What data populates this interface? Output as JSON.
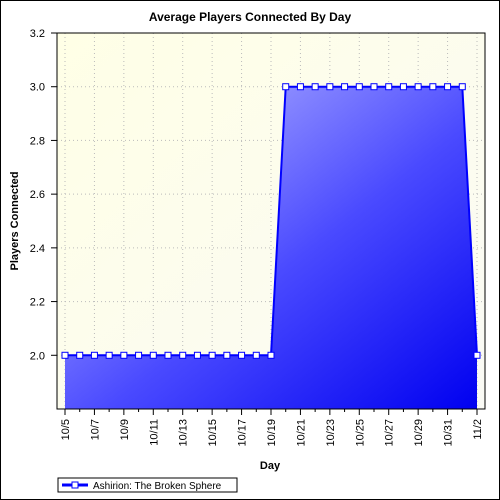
{
  "chart_data": {
    "type": "area",
    "title": "Average Players Connected By Day",
    "x_label": "Day",
    "y_label": "Players Connected",
    "categories": [
      "10/5",
      null,
      "10/7",
      null,
      "10/9",
      null,
      "10/11",
      null,
      "10/13",
      null,
      "10/15",
      null,
      "10/17",
      null,
      "10/19",
      null,
      "10/21",
      null,
      "10/23",
      null,
      "10/25",
      null,
      "10/27",
      null,
      "10/29",
      null,
      "10/31",
      null,
      "11/2"
    ],
    "series": [
      {
        "name": "Ashirion: The Broken Sphere",
        "color": "#0000ff",
        "values": [
          2,
          2,
          2,
          2,
          2,
          2,
          2,
          2,
          2,
          2,
          2,
          2,
          2,
          2,
          2,
          3,
          3,
          3,
          3,
          3,
          3,
          3,
          3,
          3,
          3,
          3,
          3,
          3,
          2
        ]
      }
    ],
    "ylim": [
      1.8,
      3.2
    ],
    "yticks": [
      {
        "value": 2,
        "label": "2.0"
      },
      2.2,
      2.4,
      2.6,
      2.8,
      {
        "value": 3,
        "label": "3.0"
      },
      3.2
    ],
    "grid": true
  }
}
